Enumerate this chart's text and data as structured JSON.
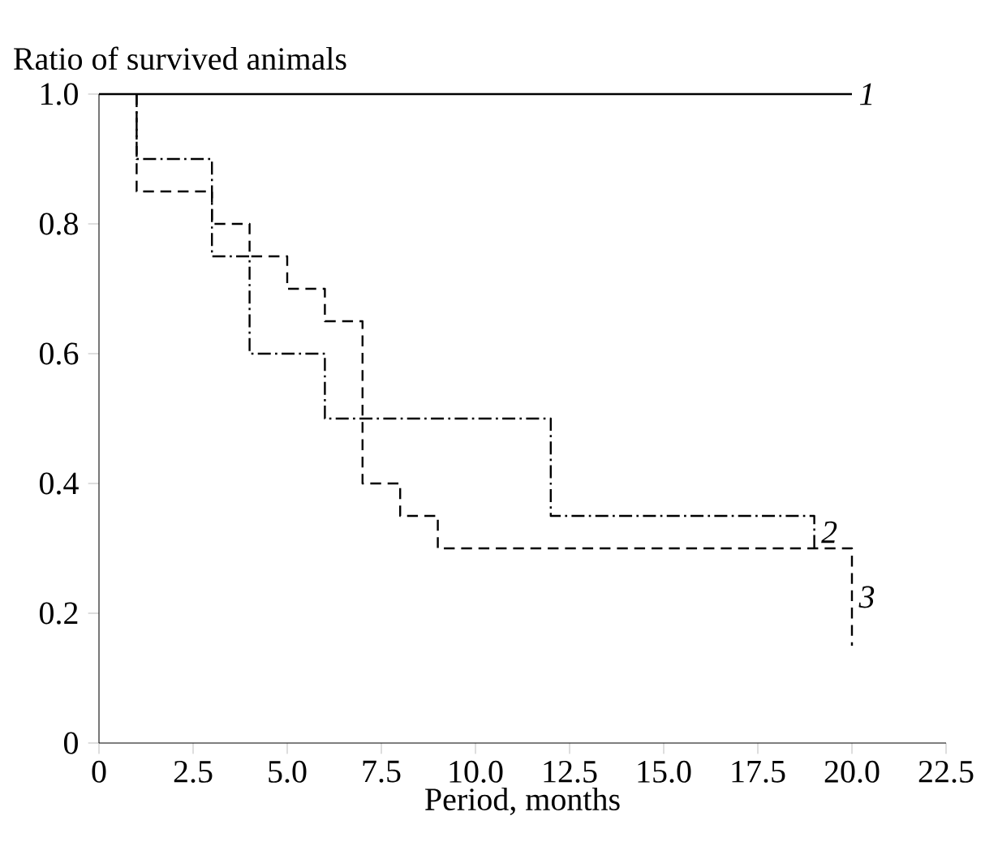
{
  "chart_data": {
    "type": "step",
    "xlabel": "Period, months",
    "ylabel": "Ratio of survived animals",
    "xlim": [
      0,
      22.5
    ],
    "ylim": [
      0,
      1.0
    ],
    "xticks": [
      0,
      2.5,
      {
        "value": 5,
        "label": "5.0"
      },
      7.5,
      {
        "value": 10,
        "label": "10.0"
      },
      12.5,
      {
        "value": 15,
        "label": "15.0"
      },
      17.5,
      {
        "value": 20,
        "label": "20.0"
      },
      22.5
    ],
    "yticks": [
      0,
      0.2,
      0.4,
      0.6,
      0.8,
      {
        "value": 1,
        "label": "1.0"
      }
    ],
    "series": [
      {
        "name": "1",
        "color": "#000000",
        "line_style": "solid",
        "x": [
          0,
          20
        ],
        "values": [
          1.0,
          1.0
        ]
      },
      {
        "name": "2",
        "color": "#000000",
        "line_style": "dashdot",
        "x": [
          1,
          1,
          3,
          4,
          6,
          12,
          19
        ],
        "values": [
          1.0,
          0.9,
          0.75,
          0.6,
          0.5,
          0.35,
          0.3
        ]
      },
      {
        "name": "3",
        "color": "#000000",
        "line_style": "dashed",
        "x": [
          1,
          1,
          3,
          4,
          5,
          6,
          7,
          8,
          9,
          20
        ],
        "values": [
          1.0,
          0.85,
          0.8,
          0.75,
          0.7,
          0.65,
          0.4,
          0.35,
          0.3,
          0.15
        ]
      }
    ]
  }
}
